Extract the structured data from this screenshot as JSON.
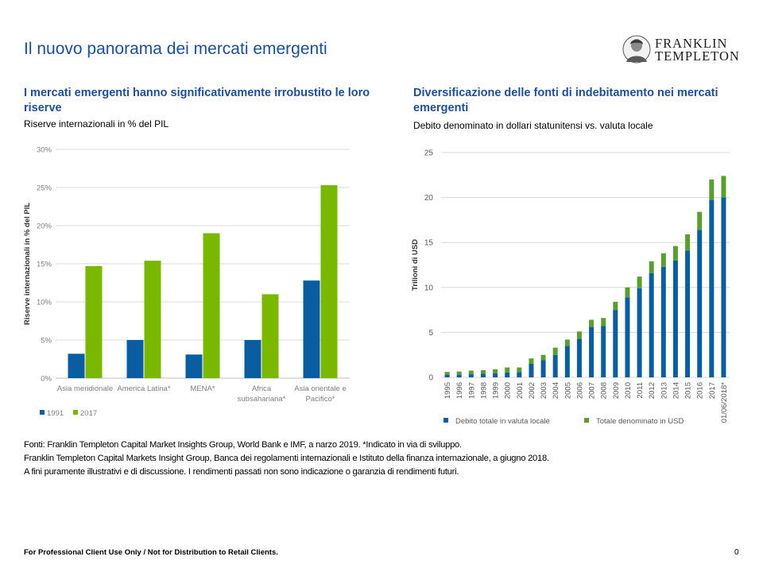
{
  "header": {
    "title": "Il nuovo panorama dei mercati emergenti",
    "logo": {
      "line1": "FRANKLIN",
      "line2": "TEMPLETON"
    }
  },
  "left_panel": {
    "title": "I mercati emergenti hanno significativamente irrobustito le loro riserve",
    "subtitle": "Riserve internazionali in % del PIL"
  },
  "right_panel": {
    "title": "Diversificazione delle fonti di indebitamento nei mercati emergenti",
    "subtitle": "Debito denominato in dollari statunitensi vs. valuta locale"
  },
  "chart_data": [
    {
      "type": "bar",
      "categories": [
        "Asia meridionale",
        "America Latina*",
        "MENA*",
        "Africa subsahariana*",
        "Asia orientale e Pacifico*"
      ],
      "category_lines": [
        [
          "Asia meridionale"
        ],
        [
          "America Latina*"
        ],
        [
          "MENA*"
        ],
        [
          "Africa",
          "subsahariana*"
        ],
        [
          "Asia orientale e",
          "Pacifico*"
        ]
      ],
      "series": [
        {
          "name": "1991",
          "values": [
            3.2,
            5.0,
            3.1,
            5.0,
            12.8
          ],
          "color": "#0b5da2"
        },
        {
          "name": "2017",
          "values": [
            14.7,
            15.4,
            19.0,
            11.0,
            25.3
          ],
          "color": "#7ab800"
        }
      ],
      "ylabel": "Riserve internazionali in % del PIL",
      "ylim": [
        0,
        30
      ],
      "yticks": [
        "0%",
        "5%",
        "10%",
        "15%",
        "20%",
        "25%",
        "30%"
      ],
      "grid": true,
      "legend_position": "bottom-left"
    },
    {
      "type": "bar",
      "stacked": true,
      "categories": [
        "1995",
        "1996",
        "1997",
        "1998",
        "1999",
        "2000",
        "2001",
        "2002",
        "2003",
        "2004",
        "2005",
        "2006",
        "2007",
        "2008",
        "2009",
        "2010",
        "2011",
        "2012",
        "2013",
        "2014",
        "2015",
        "2016",
        "2017",
        "01/06/2018*"
      ],
      "series": [
        {
          "name": "Debito totale in valuta locale",
          "values": [
            0.3,
            0.3,
            0.35,
            0.4,
            0.45,
            0.55,
            0.6,
            1.5,
            1.9,
            2.5,
            3.5,
            4.3,
            5.6,
            5.7,
            7.5,
            8.9,
            9.9,
            11.6,
            12.3,
            13.0,
            14.1,
            16.4,
            19.7,
            20.0
          ],
          "color": "#0b5da2"
        },
        {
          "name": "Totale denominato in USD",
          "values": [
            0.3,
            0.35,
            0.4,
            0.4,
            0.45,
            0.55,
            0.5,
            0.6,
            0.6,
            0.8,
            0.7,
            0.8,
            0.8,
            0.9,
            0.9,
            1.1,
            1.3,
            1.3,
            1.5,
            1.6,
            1.8,
            2.0,
            2.3,
            2.4
          ],
          "color": "#5a9e32"
        }
      ],
      "ylabel": "Trilioni di USD",
      "ylim": [
        0,
        25
      ],
      "yticks": [
        "0",
        "5",
        "10",
        "15",
        "20",
        "25"
      ],
      "grid": true,
      "legend_position": "bottom"
    }
  ],
  "sources": [
    "Fonti: Franklin Templeton Capital Market Insights Group, World Bank e IMF, a narzo 2019. *Indicato in via di sviluppo.",
    "Franklin Templeton Capital Markets Insight Group, Banca dei regolamenti internazionali e Istituto della finanza internazionale, a giugno 2018.",
    "A fini puramente illustrativi e di discussione. I rendimenti passati non sono indicazione o garanzia di rendimenti futuri."
  ],
  "footer": {
    "note": "For Professional Client Use Only / Not for Distribution to Retail Clients.",
    "page_number": "0"
  }
}
